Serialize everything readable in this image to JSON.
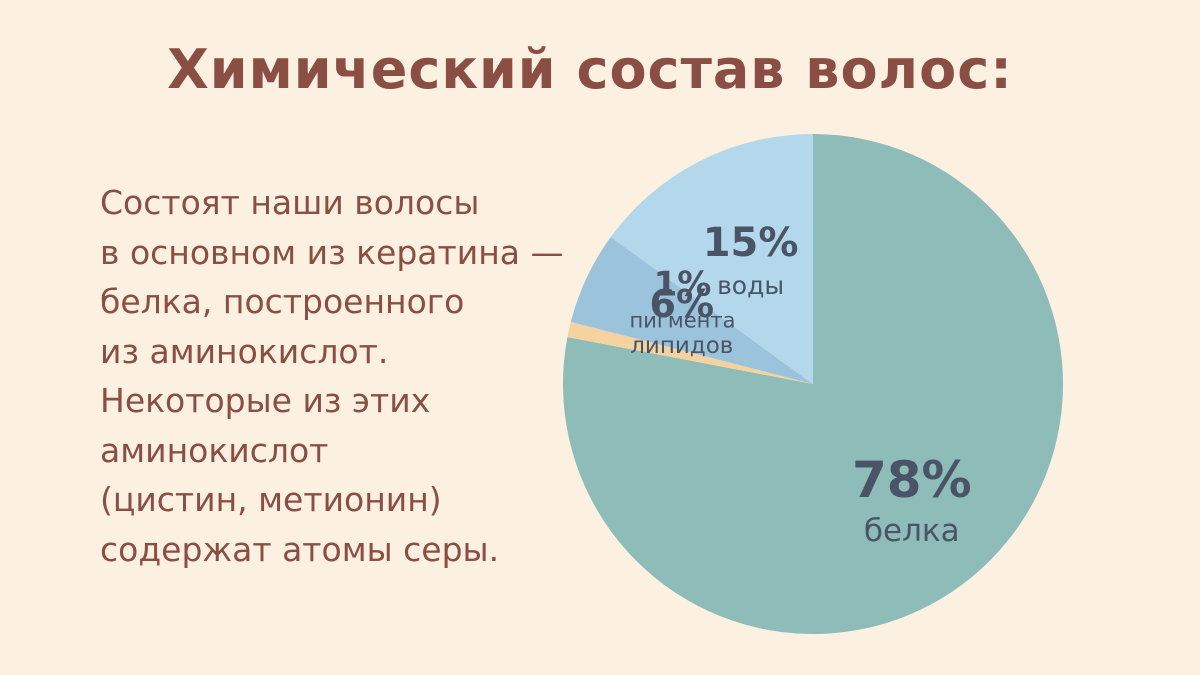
{
  "title": "Химический состав волос:",
  "description_lines": [
    "Состоят наши волосы",
    "в основном из кератина —",
    "белка, построенного",
    "из аминокислот.",
    "Некоторые из этих",
    "аминокислот",
    "(цистин, метионин)",
    "содержат атомы серы."
  ],
  "colors": {
    "background": "#fcf1e0",
    "text": "#8a4e44",
    "label": "#4a5466"
  },
  "chart_data": {
    "type": "pie",
    "title": "",
    "slices": [
      {
        "value_label": "78%",
        "name": "белка",
        "value": 78,
        "color": "#8dbcb9"
      },
      {
        "value_label": "1%",
        "name": "пигмента",
        "value": 1,
        "color": "#f5d3a0"
      },
      {
        "value_label": "6%",
        "name": "липидов",
        "value": 6,
        "color": "#9cc3dc"
      },
      {
        "value_label": "15%",
        "name": "воды",
        "value": 15,
        "color": "#b3d8eb"
      }
    ]
  }
}
